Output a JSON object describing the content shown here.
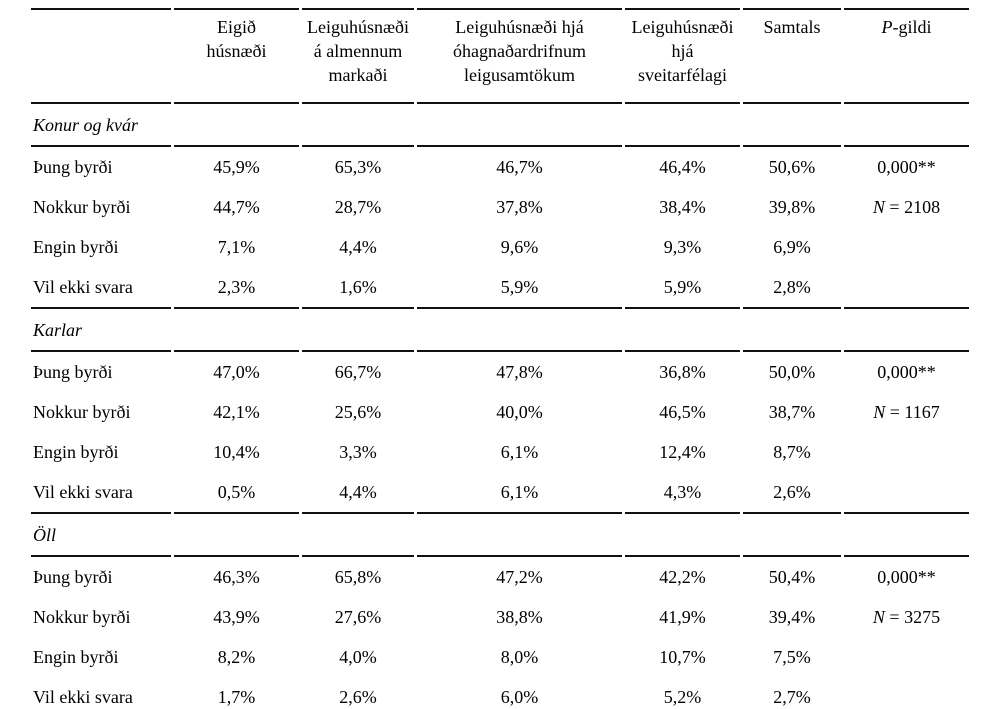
{
  "page": {
    "background_color": "#ffffff",
    "text_color": "#000000",
    "rule_color": "#111111"
  },
  "table": {
    "columns": [
      {
        "id": "row-label",
        "lines": []
      },
      {
        "id": "eigid-husnaedi",
        "lines": [
          "Eigið",
          "húsnæði"
        ]
      },
      {
        "id": "leiguhusnaedi-almennur-markadur",
        "lines": [
          "Leiguhúsnæði",
          "á almennum",
          "markaði"
        ]
      },
      {
        "id": "leiguhusnaedi-ohagnadardrifin",
        "lines": [
          "Leiguhúsnæði hjá",
          "óhagnaðardrifnum",
          "leigusamtökum"
        ]
      },
      {
        "id": "leiguhusnaedi-sveitarfelag",
        "lines": [
          "Leiguhúsnæði",
          "hjá",
          "sveitarfélagi"
        ]
      },
      {
        "id": "samtals",
        "lines": [
          "Samtals"
        ]
      },
      {
        "id": "p-gildi",
        "italic": "P",
        "rest": "-gildi"
      }
    ],
    "sections": [
      {
        "title": "Konur og kvár",
        "rows": [
          {
            "label": "Þung byrði",
            "values": [
              "45,9%",
              "65,3%",
              "46,7%",
              "46,4%",
              "50,6%"
            ],
            "stat": {
              "text": "0,000**"
            }
          },
          {
            "label": "Nokkur byrði",
            "values": [
              "44,7%",
              "28,7%",
              "37,8%",
              "38,4%",
              "39,8%"
            ],
            "stat": {
              "italic": "N",
              "text": " = 2108"
            }
          },
          {
            "label": "Engin byrði",
            "values": [
              "7,1%",
              "4,4%",
              "9,6%",
              "9,3%",
              "6,9%"
            ],
            "stat": null
          },
          {
            "label": "Vil ekki svara",
            "values": [
              "2,3%",
              "1,6%",
              "5,9%",
              "5,9%",
              "2,8%"
            ],
            "stat": null
          }
        ]
      },
      {
        "title": "Karlar",
        "rows": [
          {
            "label": "Þung byrði",
            "values": [
              "47,0%",
              "66,7%",
              "47,8%",
              "36,8%",
              "50,0%"
            ],
            "stat": {
              "text": "0,000**"
            }
          },
          {
            "label": "Nokkur byrði",
            "values": [
              "42,1%",
              "25,6%",
              "40,0%",
              "46,5%",
              "38,7%"
            ],
            "stat": {
              "italic": "N",
              "text": " = 1167"
            }
          },
          {
            "label": "Engin byrði",
            "values": [
              "10,4%",
              "3,3%",
              "6,1%",
              "12,4%",
              "8,7%"
            ],
            "stat": null
          },
          {
            "label": "Vil ekki svara",
            "values": [
              "0,5%",
              "4,4%",
              "6,1%",
              "4,3%",
              "2,6%"
            ],
            "stat": null
          }
        ]
      },
      {
        "title": "Öll",
        "rows": [
          {
            "label": "Þung byrði",
            "values": [
              "46,3%",
              "65,8%",
              "47,2%",
              "42,2%",
              "50,4%"
            ],
            "stat": {
              "text": "0,000**"
            }
          },
          {
            "label": "Nokkur byrði",
            "values": [
              "43,9%",
              "27,6%",
              "38,8%",
              "41,9%",
              "39,4%"
            ],
            "stat": {
              "italic": "N",
              "text": " = 3275"
            }
          },
          {
            "label": "Engin byrði",
            "values": [
              "8,2%",
              "4,0%",
              "8,0%",
              "10,7%",
              "7,5%"
            ],
            "stat": null
          },
          {
            "label": "Vil ekki svara",
            "values": [
              "1,7%",
              "2,6%",
              "6,0%",
              "5,2%",
              "2,7%"
            ],
            "stat": null
          }
        ]
      }
    ]
  }
}
